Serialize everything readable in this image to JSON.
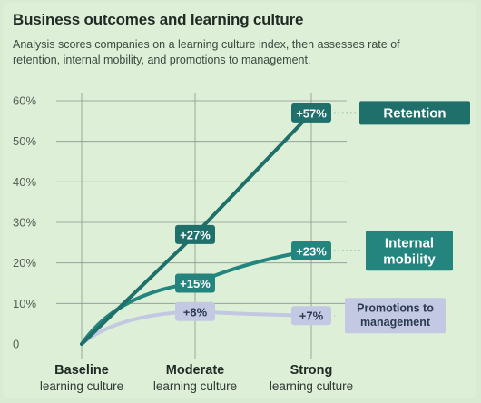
{
  "title": "Business outcomes and learning culture",
  "subtitle": "Analysis scores companies on a learning culture index, then assesses rate of retention, internal mobility, and promotions to management.",
  "colors": {
    "background": "#ddefd7",
    "grid": "#8a9690",
    "retention": "#1f6f6b",
    "internal_mobility": "#23857e",
    "promotions_line": "#c2c8e2",
    "promotions_label_bg": "#c4c9e3",
    "promotions_text": "#2b3a50"
  },
  "chart_data": {
    "type": "line",
    "categories": [
      [
        "Baseline",
        "learning culture"
      ],
      [
        "Moderate",
        "learning culture"
      ],
      [
        "Strong",
        "learning culture"
      ]
    ],
    "ylim": [
      0,
      60
    ],
    "yticks": [
      "0",
      "10%",
      "20%",
      "30%",
      "40%",
      "50%",
      "60%"
    ],
    "grid": "both",
    "legend": "right-of-line-ends",
    "series": [
      {
        "key": "retention",
        "name": "Retention",
        "label_lines": [
          "Retention"
        ],
        "values": [
          0,
          27,
          57
        ],
        "data_labels": [
          "",
          "+27%",
          "+57%"
        ]
      },
      {
        "key": "internal_mobility",
        "name": "Internal mobility",
        "label_lines": [
          "Internal",
          "mobility"
        ],
        "values": [
          0,
          15,
          23
        ],
        "data_labels": [
          "",
          "+15%",
          "+23%"
        ]
      },
      {
        "key": "promotions",
        "name": "Promotions to management",
        "label_lines": [
          "Promotions to",
          "management"
        ],
        "values": [
          0,
          8,
          7
        ],
        "data_labels": [
          "",
          "+8%",
          "+7%"
        ]
      }
    ]
  }
}
